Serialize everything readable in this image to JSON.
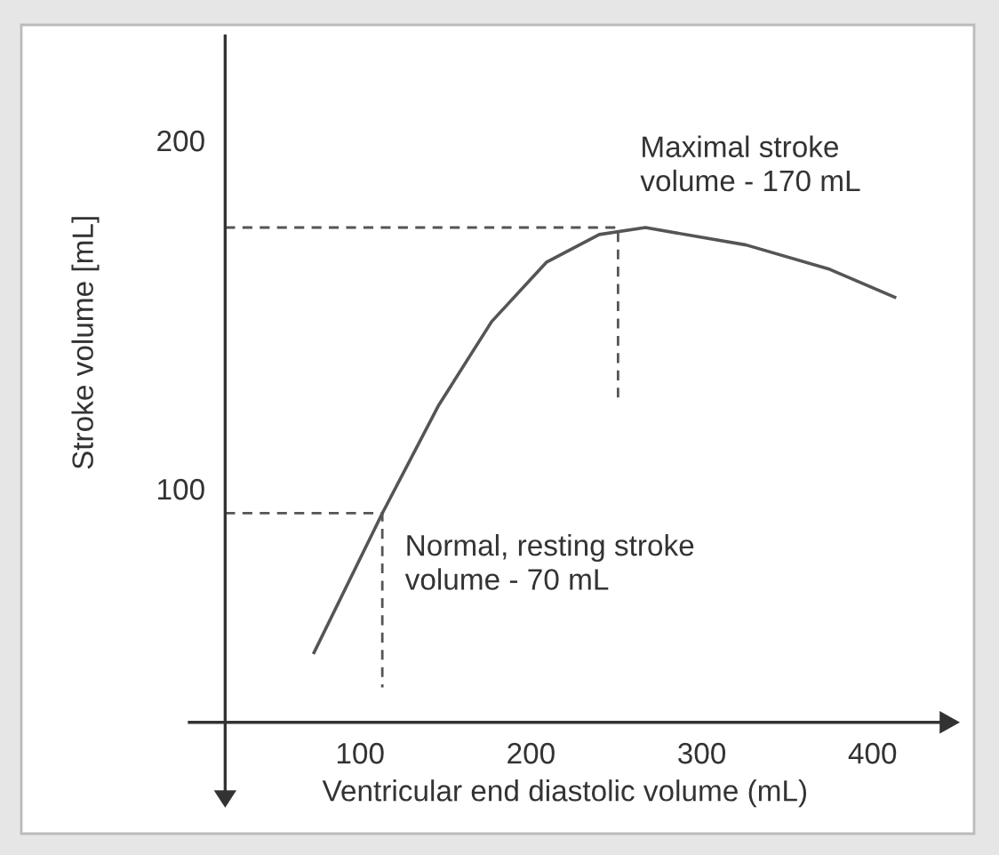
{
  "chart_data": {
    "type": "line",
    "xlabel": "Ventricular end diastolic volume (mL)",
    "ylabel": "Stroke volume [mL]",
    "xlim": [
      0,
      440
    ],
    "ylim": [
      10,
      230
    ],
    "xticks": [
      100,
      200,
      300,
      400
    ],
    "yticks": [
      100,
      200
    ],
    "grid": false,
    "series": [
      {
        "color": "#555555",
        "line_style": "solid",
        "x": [
          73,
          113,
          146,
          177,
          209,
          240,
          267,
          326,
          375,
          413
        ],
        "values": [
          53,
          93,
          124,
          148,
          165,
          173,
          175,
          170,
          163,
          155
        ]
      },
      {
        "color": "#555555",
        "line_style": "dashed",
        "x": [
          21,
          113,
          113
        ],
        "values": [
          93,
          93,
          43
        ]
      },
      {
        "color": "#555555",
        "line_style": "dashed",
        "x": [
          21,
          251,
          251
        ],
        "values": [
          175,
          175,
          125
        ]
      }
    ],
    "annotations": [
      "Maximal stroke\nvolume - 170 mL",
      "Normal, resting stroke\nvolume - 70 mL"
    ]
  }
}
